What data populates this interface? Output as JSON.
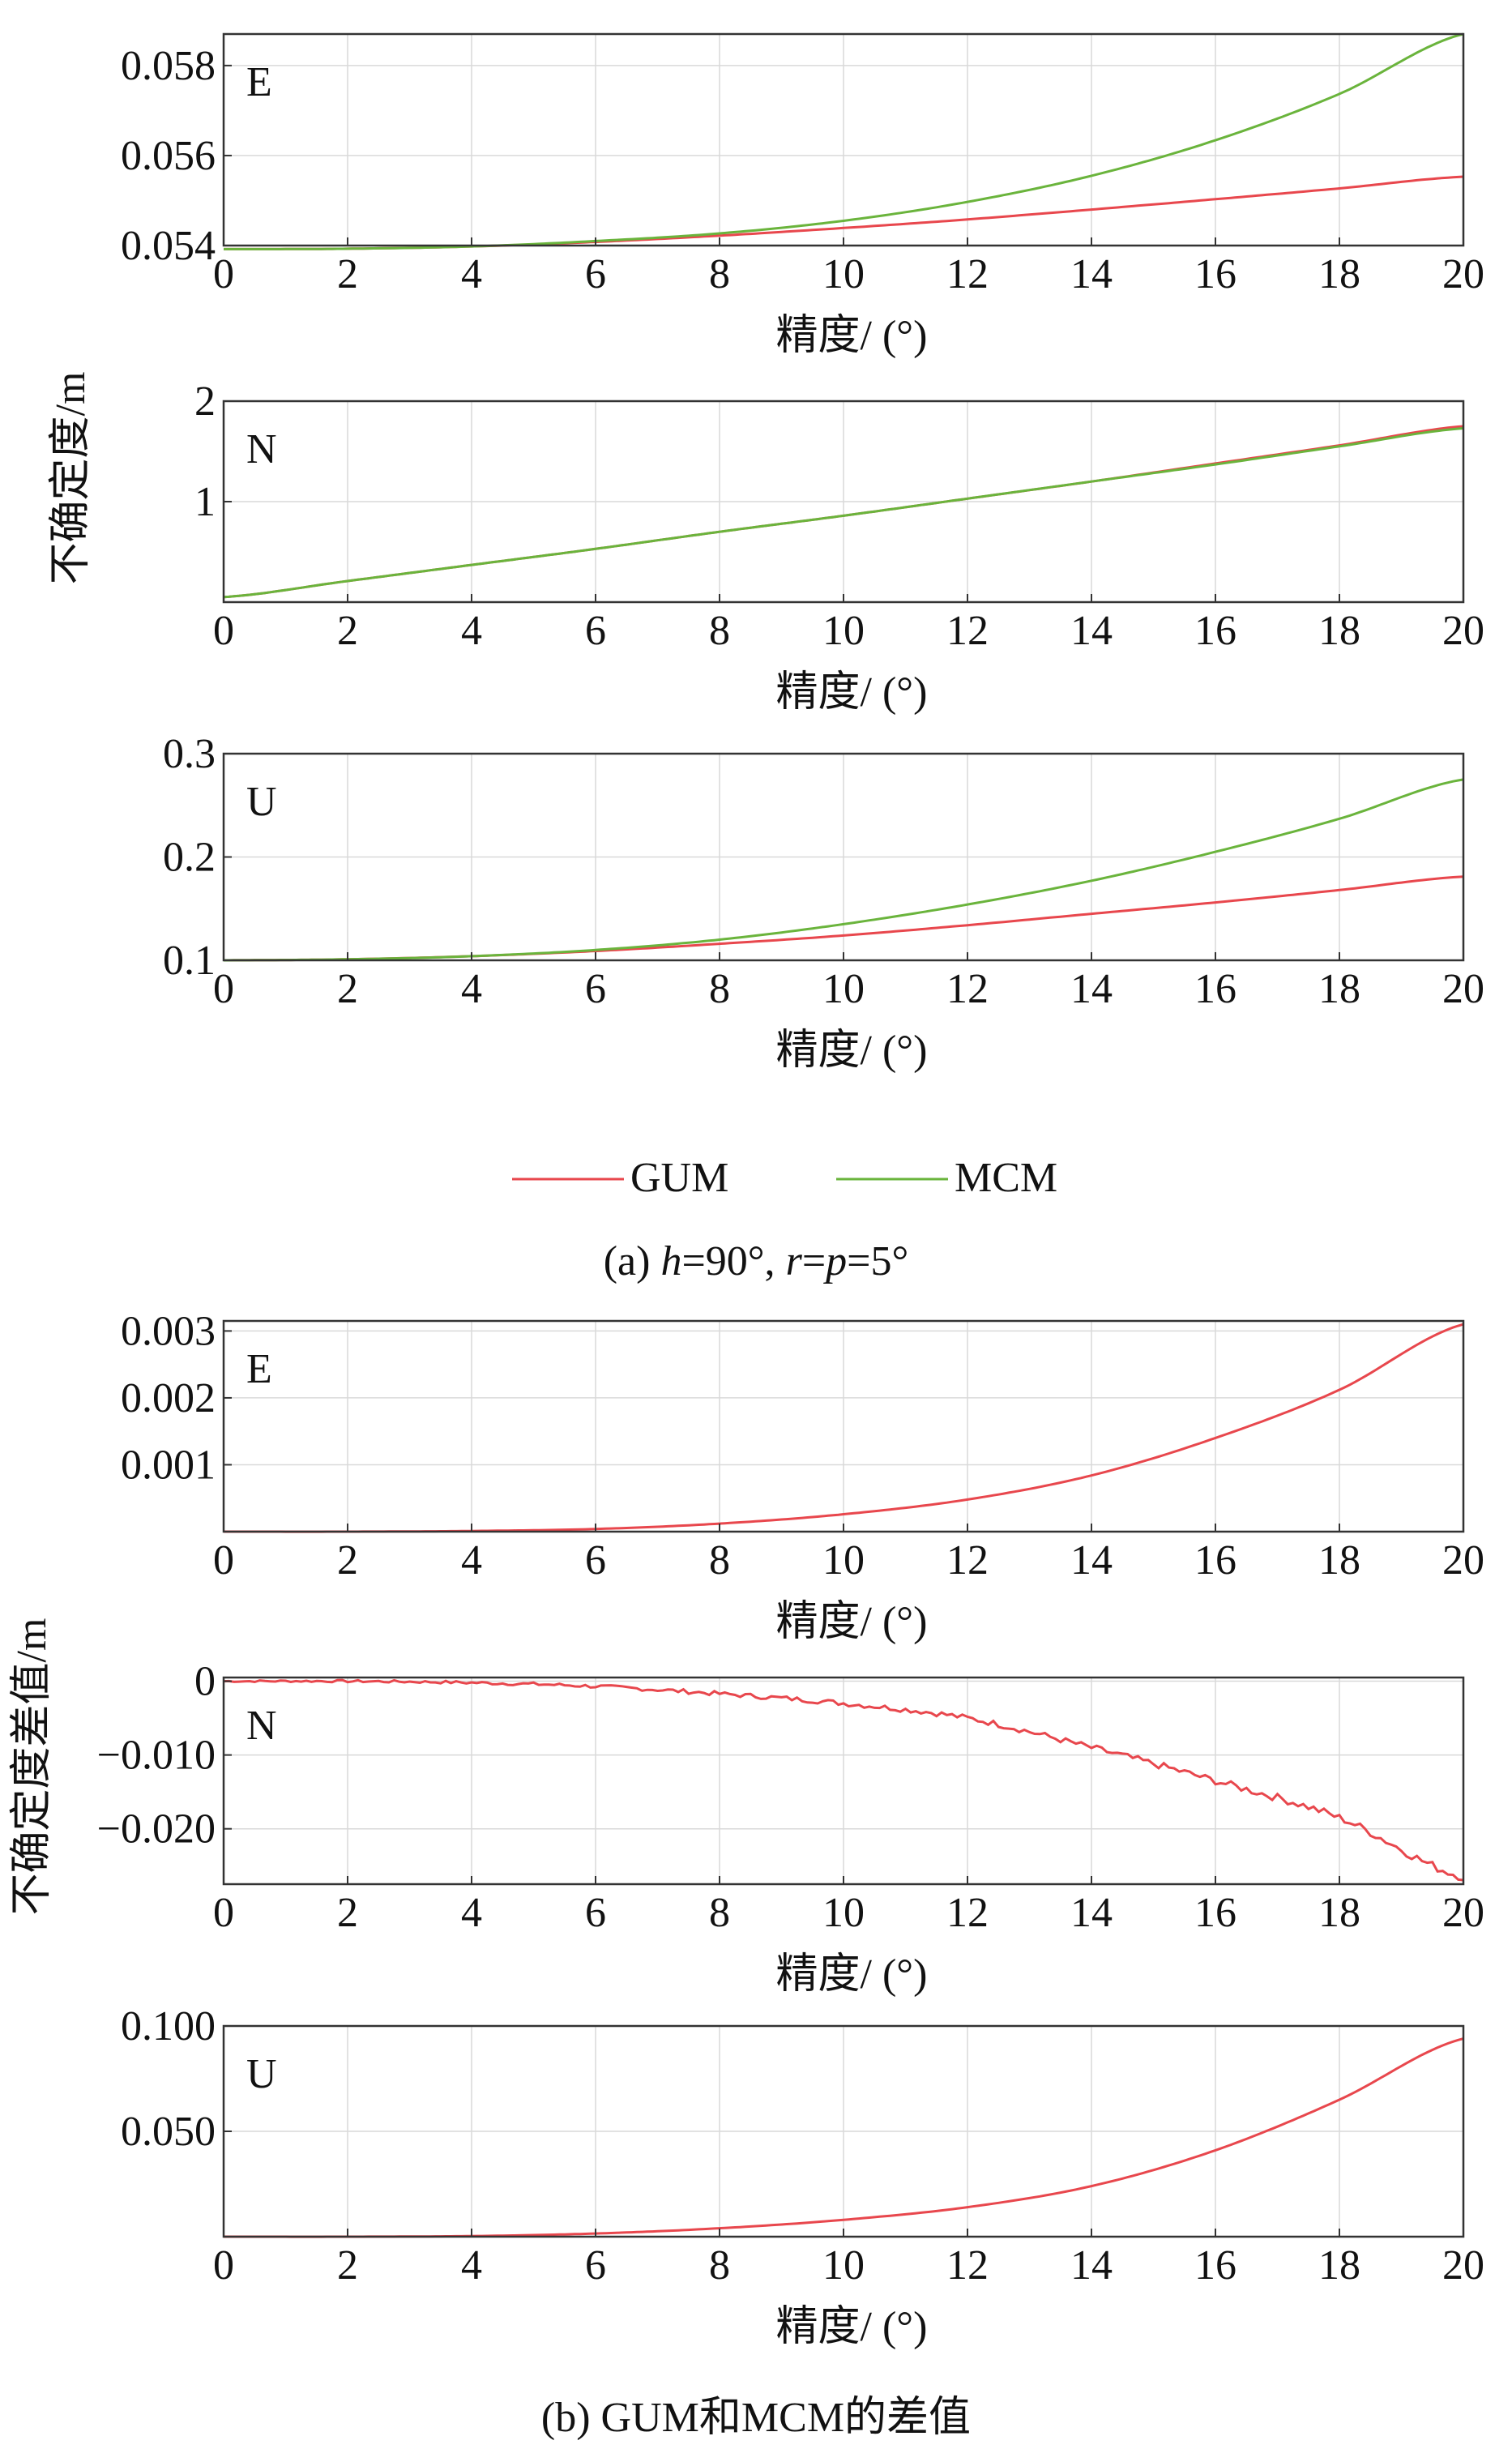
{
  "colors": {
    "gum": "#e8474d",
    "mcm": "#6ab43c",
    "axis": "#333333",
    "grid": "#d9d9d9"
  },
  "part_a": {
    "caption": "(a) h=90°, r=p=5°",
    "caption_parts": [
      "(a) ",
      "h",
      "=90°, ",
      "r",
      "=",
      "p",
      "=5°"
    ],
    "ylabel": "不确定度/m",
    "legend": [
      {
        "key": "gum",
        "label": "GUM"
      },
      {
        "key": "mcm",
        "label": "MCM"
      }
    ]
  },
  "part_b": {
    "caption": "(b) GUM和MCM的差值",
    "ylabel": "不确定度差值/m"
  },
  "chart_data": [
    {
      "id": "a-E",
      "type": "line",
      "panel_label": "E",
      "xlabel": "精度/ (°)",
      "xlim": [
        0,
        20
      ],
      "ylim": [
        0.054,
        0.0587
      ],
      "xticks": [
        "0",
        "2",
        "4",
        "6",
        "8",
        "10",
        "12",
        "14",
        "16",
        "18",
        "20"
      ],
      "yticks": [
        {
          "v": 0.054,
          "label": "0.054"
        },
        {
          "v": 0.056,
          "label": "0.056"
        },
        {
          "v": 0.058,
          "label": "0.058"
        }
      ],
      "x": [
        0,
        2,
        4,
        6,
        8,
        10,
        12,
        14,
        16,
        18,
        20
      ],
      "series": [
        {
          "name": "GUM",
          "color_key": "gum",
          "values": [
            0.05392,
            0.05393,
            0.05398,
            0.05408,
            0.05422,
            0.05439,
            0.05458,
            0.0548,
            0.05503,
            0.05527,
            0.05553
          ]
        },
        {
          "name": "MCM",
          "color_key": "mcm",
          "values": [
            0.05392,
            0.05393,
            0.05398,
            0.0541,
            0.05427,
            0.05455,
            0.05497,
            0.05555,
            0.05634,
            0.05737,
            0.0587
          ]
        }
      ]
    },
    {
      "id": "a-N",
      "type": "line",
      "panel_label": "N",
      "xlabel": "精度/ (°)",
      "xlim": [
        0,
        20
      ],
      "ylim": [
        0,
        2
      ],
      "xticks": [
        "0",
        "2",
        "4",
        "6",
        "8",
        "10",
        "12",
        "14",
        "16",
        "18",
        "20"
      ],
      "yticks": [
        {
          "v": 1,
          "label": "1"
        },
        {
          "v": 2,
          "label": "2"
        }
      ],
      "x": [
        0,
        2,
        4,
        6,
        8,
        10,
        12,
        14,
        16,
        18,
        20
      ],
      "series": [
        {
          "name": "GUM",
          "color_key": "gum",
          "values": [
            0.05,
            0.21,
            0.37,
            0.53,
            0.7,
            0.86,
            1.03,
            1.2,
            1.38,
            1.56,
            1.75
          ]
        },
        {
          "name": "MCM",
          "color_key": "mcm",
          "values": [
            0.05,
            0.21,
            0.37,
            0.53,
            0.7,
            0.86,
            1.03,
            1.2,
            1.37,
            1.55,
            1.73
          ]
        }
      ]
    },
    {
      "id": "a-U",
      "type": "line",
      "panel_label": "U",
      "xlabel": "精度/ (°)",
      "xlim": [
        0,
        20
      ],
      "ylim": [
        0.1,
        0.3
      ],
      "xticks": [
        "0",
        "2",
        "4",
        "6",
        "8",
        "10",
        "12",
        "14",
        "16",
        "18",
        "20"
      ],
      "yticks": [
        {
          "v": 0.1,
          "label": "0.1"
        },
        {
          "v": 0.2,
          "label": "0.2"
        },
        {
          "v": 0.3,
          "label": "0.3"
        }
      ],
      "x": [
        0,
        2,
        4,
        6,
        8,
        10,
        12,
        14,
        16,
        18,
        20
      ],
      "series": [
        {
          "name": "GUM",
          "color_key": "gum",
          "values": [
            0.1,
            0.101,
            0.104,
            0.109,
            0.116,
            0.124,
            0.134,
            0.145,
            0.156,
            0.168,
            0.181
          ]
        },
        {
          "name": "MCM",
          "color_key": "mcm",
          "values": [
            0.1,
            0.101,
            0.104,
            0.11,
            0.12,
            0.135,
            0.154,
            0.177,
            0.205,
            0.237,
            0.275
          ]
        }
      ]
    },
    {
      "id": "b-E",
      "type": "line",
      "panel_label": "E",
      "xlabel": "精度/ (°)",
      "xlim": [
        0,
        20
      ],
      "ylim": [
        0,
        0.00315
      ],
      "xticks": [
        "0",
        "2",
        "4",
        "6",
        "8",
        "10",
        "12",
        "14",
        "16",
        "18",
        "20"
      ],
      "yticks": [
        {
          "v": 0.001,
          "label": "0.001"
        },
        {
          "v": 0.002,
          "label": "0.002"
        },
        {
          "v": 0.003,
          "label": "0.003"
        }
      ],
      "x": [
        0,
        2,
        4,
        6,
        8,
        10,
        12,
        14,
        16,
        18,
        20
      ],
      "series": [
        {
          "name": "GUM−MCM",
          "color_key": "gum",
          "noise": 0,
          "values": [
            0,
            0,
            1e-05,
            4e-05,
            0.00012,
            0.00026,
            0.00048,
            0.00084,
            0.0014,
            0.00212,
            0.0031
          ]
        }
      ]
    },
    {
      "id": "b-N",
      "type": "line",
      "panel_label": "N",
      "xlabel": "精度/ (°)",
      "xlim": [
        0,
        20
      ],
      "ylim": [
        -0.0275,
        0.0005
      ],
      "xticks": [
        "0",
        "2",
        "4",
        "6",
        "8",
        "10",
        "12",
        "14",
        "16",
        "18",
        "20"
      ],
      "yticks": [
        {
          "v": 0,
          "label": "0"
        },
        {
          "v": -0.01,
          "label": "−0.010"
        },
        {
          "v": -0.02,
          "label": "−0.020"
        }
      ],
      "x": [
        0,
        2,
        4,
        6,
        8,
        10,
        12,
        14,
        16,
        18,
        20
      ],
      "series": [
        {
          "name": "GUM−MCM",
          "color_key": "gum",
          "noise": 0.0009,
          "values": [
            0,
            0,
            -0.0002,
            -0.0007,
            -0.0017,
            -0.003,
            -0.005,
            -0.009,
            -0.0135,
            -0.0185,
            -0.0265
          ]
        }
      ]
    },
    {
      "id": "b-U",
      "type": "line",
      "panel_label": "U",
      "xlabel": "精度/ (°)",
      "xlim": [
        0,
        20
      ],
      "ylim": [
        0,
        0.1
      ],
      "xticks": [
        "0",
        "2",
        "4",
        "6",
        "8",
        "10",
        "12",
        "14",
        "16",
        "18",
        "20"
      ],
      "yticks": [
        {
          "v": 0.05,
          "label": "0.050"
        },
        {
          "v": 0.1,
          "label": "0.100"
        }
      ],
      "x": [
        0,
        2,
        4,
        6,
        8,
        10,
        12,
        14,
        16,
        18,
        20
      ],
      "series": [
        {
          "name": "GUM−MCM",
          "color_key": "gum",
          "noise": 0,
          "values": [
            0,
            0,
            0.0003,
            0.0015,
            0.004,
            0.008,
            0.014,
            0.024,
            0.041,
            0.065,
            0.094
          ]
        }
      ]
    }
  ]
}
